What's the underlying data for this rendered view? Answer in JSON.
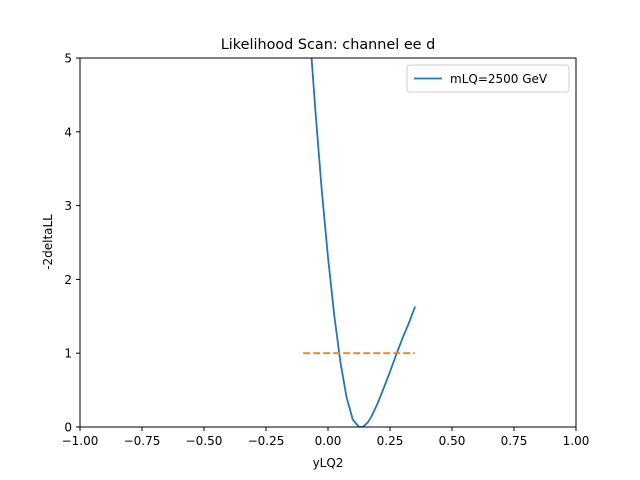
{
  "chart_data": {
    "type": "line",
    "title": "Likelihood Scan: channel ee d",
    "xlabel": "yLQ2",
    "ylabel": "-2deltaLL",
    "xlim": [
      -1.0,
      1.0
    ],
    "ylim": [
      0,
      5
    ],
    "xticks": [
      -1.0,
      -0.75,
      -0.5,
      -0.25,
      0.0,
      0.25,
      0.5,
      0.75,
      1.0
    ],
    "xtick_labels": [
      "−1.00",
      "−0.75",
      "−0.50",
      "−0.25",
      "0.00",
      "0.25",
      "0.50",
      "0.75",
      "1.00"
    ],
    "yticks": [
      0,
      1,
      2,
      3,
      4,
      5
    ],
    "ytick_labels": [
      "0",
      "1",
      "2",
      "3",
      "4",
      "5"
    ],
    "grid": false,
    "legend_position": "top-right",
    "series": [
      {
        "name": "mLQ=2500 GeV",
        "color": "#1f77b4",
        "style": "solid",
        "x": [
          -0.075,
          -0.05,
          -0.025,
          0.0,
          0.025,
          0.05,
          0.075,
          0.1,
          0.125,
          0.14,
          0.16,
          0.175,
          0.2,
          0.225,
          0.25,
          0.275,
          0.3,
          0.325,
          0.35
        ],
        "y": [
          5.4,
          4.25,
          3.2,
          2.3,
          1.52,
          0.88,
          0.4,
          0.1,
          0.0,
          0.0,
          0.06,
          0.14,
          0.32,
          0.53,
          0.75,
          0.98,
          1.2,
          1.4,
          1.62
        ]
      },
      {
        "name": "",
        "color": "#ff7f0e",
        "style": "dashed",
        "x": [
          -0.1,
          0.35
        ],
        "y": [
          1.0,
          1.0
        ]
      }
    ]
  }
}
